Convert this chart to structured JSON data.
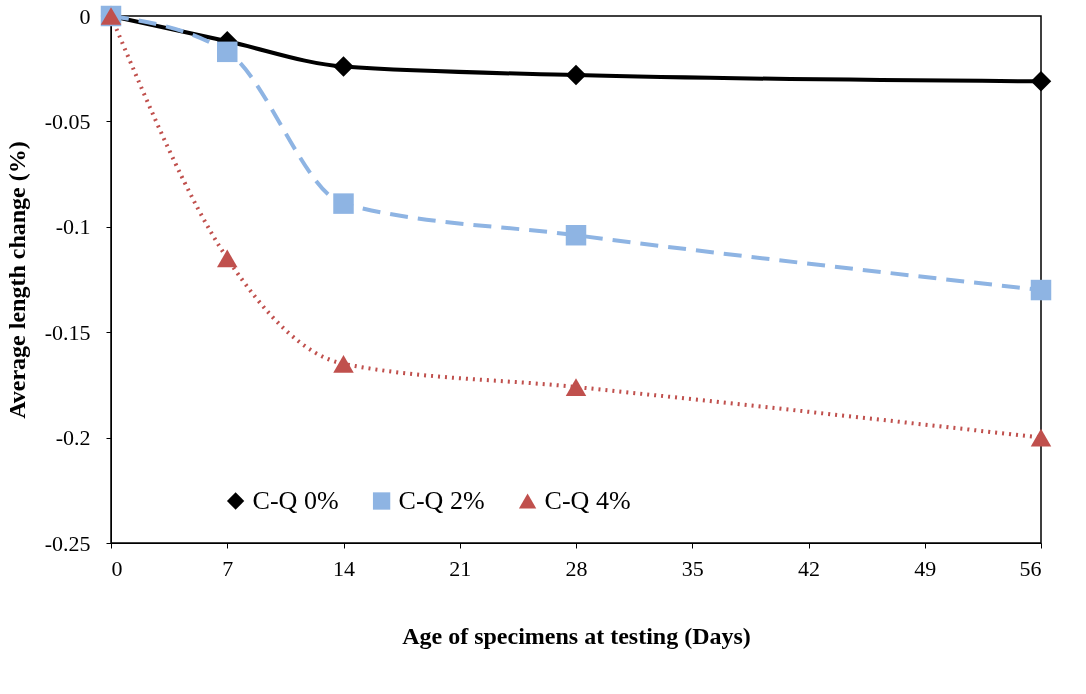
{
  "chart_data": {
    "type": "line",
    "xlabel": "Age of specimens at testing (Days)",
    "ylabel": "Average length change (%)",
    "x": [
      0,
      7,
      14,
      28,
      56
    ],
    "xlim": [
      0,
      56
    ],
    "xticks": [
      0,
      7,
      14,
      21,
      28,
      35,
      42,
      49,
      56
    ],
    "ylim": [
      -0.25,
      0
    ],
    "yticks": [
      0,
      -0.05,
      -0.1,
      -0.15,
      -0.2,
      -0.25
    ],
    "grid": false,
    "legend": "bottom",
    "series": [
      {
        "name": "C-Q 0%",
        "color": "#000000",
        "marker": "diamond",
        "line_style": "solid",
        "values": [
          0,
          -0.012,
          -0.024,
          -0.028,
          -0.031
        ]
      },
      {
        "name": "C-Q 2%",
        "color": "#8eb4e3",
        "marker": "square",
        "line_style": "dashed",
        "values": [
          0,
          -0.017,
          -0.089,
          -0.104,
          -0.13
        ]
      },
      {
        "name": "C-Q 4%",
        "color": "#c0504d",
        "marker": "triangle",
        "line_style": "dotted",
        "values": [
          0,
          -0.115,
          -0.165,
          -0.176,
          -0.2
        ]
      }
    ]
  }
}
